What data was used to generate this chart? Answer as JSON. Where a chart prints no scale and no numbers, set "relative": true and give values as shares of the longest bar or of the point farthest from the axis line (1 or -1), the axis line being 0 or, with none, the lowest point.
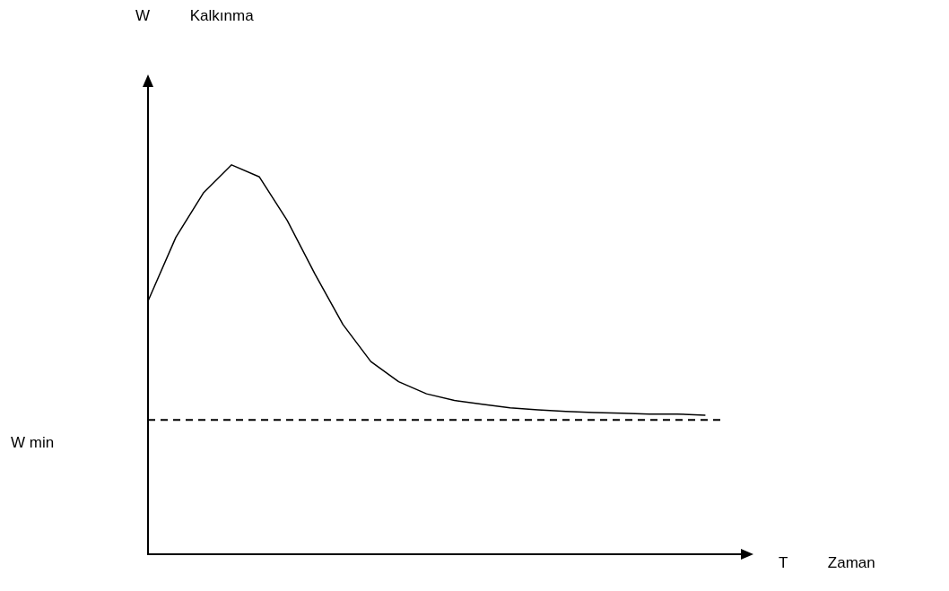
{
  "chart_data": {
    "type": "line",
    "relative": true,
    "xlabel": "T Zaman",
    "annotations": [
      "W Kalkınma"
    ],
    "categories": [
      null,
      null,
      null,
      null,
      null,
      null,
      null,
      null,
      null,
      null,
      null,
      null,
      null,
      null,
      null,
      null,
      null,
      null,
      null,
      null,
      null
    ],
    "series": [
      {
        "color": "#000000",
        "values": [
          0.65,
          0.814,
          0.929,
          1,
          0.969,
          0.857,
          0.719,
          0.59,
          0.495,
          0.443,
          0.412,
          0.395,
          0.385,
          0.376,
          0.371,
          0.367,
          0.364,
          0.362,
          0.36,
          0.36,
          0.357
        ]
      }
    ],
    "ref_lines": [
      {
        "axis": "y",
        "value": 0.345,
        "label": "W min",
        "color": "#000000",
        "line_style": "dashed"
      }
    ],
    "grid": false,
    "legend": false,
    "marker": "none",
    "line_style": "solid"
  }
}
